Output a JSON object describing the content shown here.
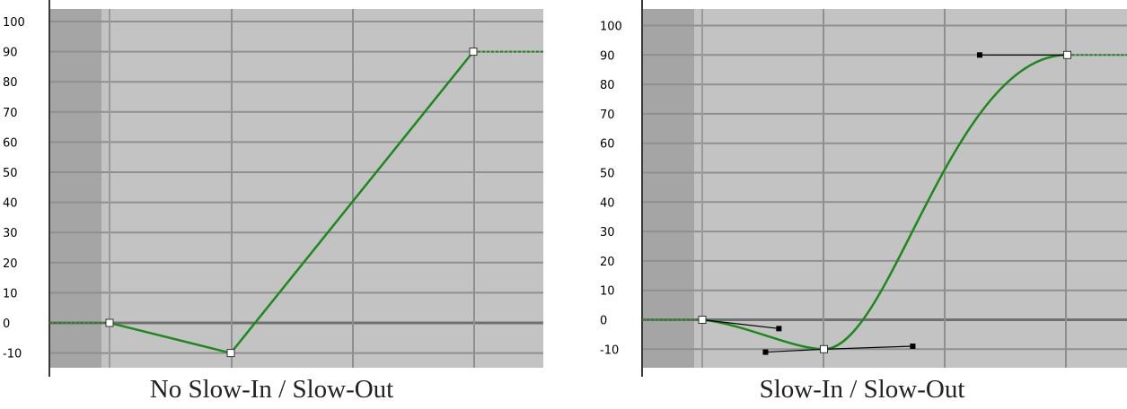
{
  "colors": {
    "background": "#c3c3c3",
    "shaded_region": "#a5a5a5",
    "grid": "#8f8f8f",
    "zero_line": "#707070",
    "curve": "#1b8a1b",
    "tangent": "#000000"
  },
  "y_ticks": [
    "100",
    "90",
    "80",
    "70",
    "60",
    "50",
    "40",
    "30",
    "20",
    "10",
    "0",
    "-10"
  ],
  "panels": [
    {
      "caption": "No Slow-In / Slow-Out",
      "interpolation": "linear",
      "keyframes": [
        {
          "frame": 0,
          "value": 0
        },
        {
          "frame": 1,
          "value": -10
        },
        {
          "frame": 3,
          "value": 90
        }
      ]
    },
    {
      "caption": "Slow-In / Slow-Out",
      "interpolation": "bezier",
      "keyframes": [
        {
          "frame": 0,
          "value": 0
        },
        {
          "frame": 1,
          "value": -10
        },
        {
          "frame": 3,
          "value": 90
        }
      ],
      "tangent_handles": [
        {
          "key": 0,
          "out": {
            "frame": 0.63,
            "value": -3
          }
        },
        {
          "key": 1,
          "in": {
            "frame": -0.48,
            "value": -11
          },
          "out": {
            "frame": 0.73,
            "value": -9
          }
        },
        {
          "key": 2,
          "in": {
            "frame": -0.72,
            "value": 90
          }
        }
      ]
    }
  ]
}
